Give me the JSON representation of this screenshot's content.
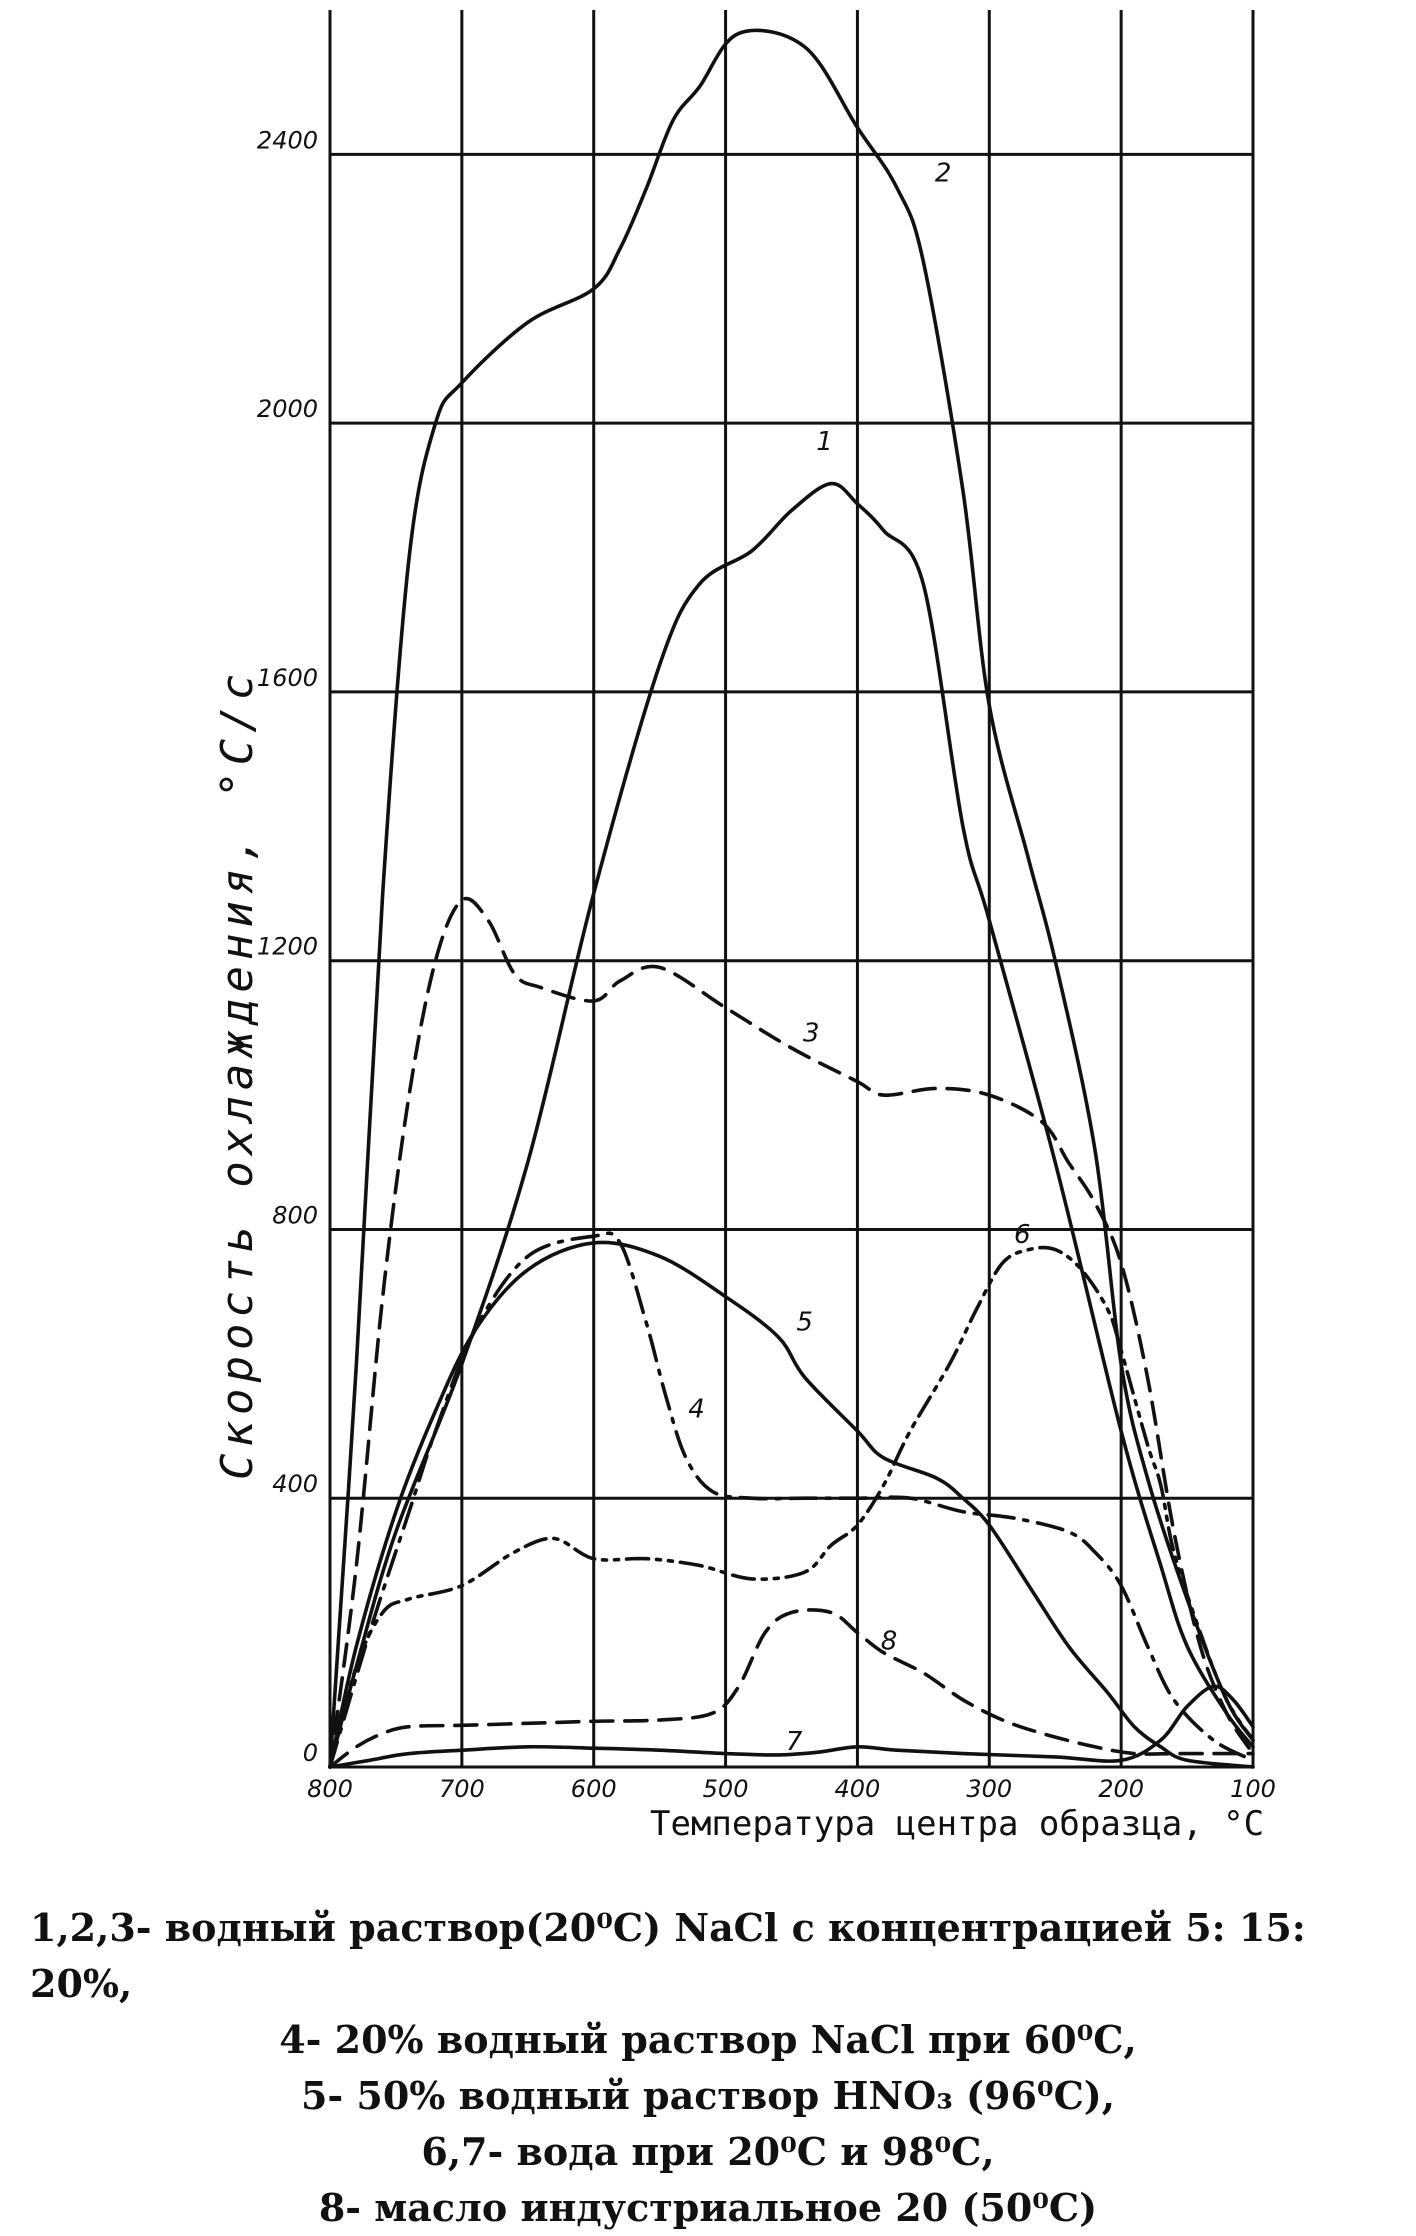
{
  "chart_data": {
    "type": "line",
    "title": "",
    "xlabel": "Температура центра образца,",
    "xunit": "°С",
    "ylabel": "Скорость охлаждения,",
    "yunit": "°С/с",
    "xlim": [
      800,
      100
    ],
    "ylim": [
      0,
      2600
    ],
    "x_ticks": [
      "800",
      "700",
      "600",
      "500",
      "400",
      "300",
      "200",
      "100"
    ],
    "y_ticks": [
      "0",
      "400",
      "800",
      "1200",
      "1600",
      "2000",
      "2400"
    ],
    "grid": true,
    "legend": "none",
    "series": [
      {
        "name": "1",
        "style": "solid",
        "points": [
          [
            800,
            0
          ],
          [
            780,
            150
          ],
          [
            750,
            350
          ],
          [
            700,
            600
          ],
          [
            650,
            900
          ],
          [
            600,
            1300
          ],
          [
            550,
            1640
          ],
          [
            520,
            1760
          ],
          [
            480,
            1810
          ],
          [
            450,
            1870
          ],
          [
            420,
            1910
          ],
          [
            400,
            1880
          ],
          [
            380,
            1840
          ],
          [
            350,
            1760
          ],
          [
            320,
            1400
          ],
          [
            300,
            1260
          ],
          [
            250,
            900
          ],
          [
            200,
            500
          ],
          [
            170,
            300
          ],
          [
            150,
            180
          ],
          [
            120,
            80
          ],
          [
            100,
            30
          ]
        ]
      },
      {
        "name": "2",
        "style": "solid",
        "points": [
          [
            800,
            0
          ],
          [
            780,
            600
          ],
          [
            760,
            1300
          ],
          [
            740,
            1800
          ],
          [
            720,
            2000
          ],
          [
            700,
            2060
          ],
          [
            650,
            2150
          ],
          [
            600,
            2200
          ],
          [
            580,
            2260
          ],
          [
            560,
            2350
          ],
          [
            540,
            2450
          ],
          [
            520,
            2500
          ],
          [
            490,
            2580
          ],
          [
            440,
            2560
          ],
          [
            400,
            2440
          ],
          [
            370,
            2350
          ],
          [
            350,
            2240
          ],
          [
            320,
            1900
          ],
          [
            300,
            1580
          ],
          [
            270,
            1350
          ],
          [
            250,
            1200
          ],
          [
            220,
            920
          ],
          [
            200,
            600
          ],
          [
            180,
            430
          ],
          [
            150,
            250
          ],
          [
            120,
            100
          ],
          [
            100,
            40
          ]
        ]
      },
      {
        "name": "3",
        "style": "dash",
        "points": [
          [
            800,
            0
          ],
          [
            780,
            300
          ],
          [
            760,
            700
          ],
          [
            740,
            1000
          ],
          [
            720,
            1200
          ],
          [
            700,
            1290
          ],
          [
            680,
            1260
          ],
          [
            660,
            1180
          ],
          [
            640,
            1160
          ],
          [
            600,
            1140
          ],
          [
            580,
            1170
          ],
          [
            550,
            1190
          ],
          [
            500,
            1130
          ],
          [
            450,
            1070
          ],
          [
            400,
            1020
          ],
          [
            380,
            1000
          ],
          [
            340,
            1010
          ],
          [
            300,
            1000
          ],
          [
            260,
            960
          ],
          [
            240,
            900
          ],
          [
            220,
            840
          ],
          [
            200,
            750
          ],
          [
            180,
            580
          ],
          [
            160,
            350
          ],
          [
            140,
            180
          ],
          [
            120,
            80
          ],
          [
            100,
            20
          ]
        ]
      },
      {
        "name": "4",
        "style": "dashdot",
        "points": [
          [
            800,
            0
          ],
          [
            770,
            200
          ],
          [
            740,
            380
          ],
          [
            720,
            500
          ],
          [
            690,
            650
          ],
          [
            650,
            760
          ],
          [
            600,
            790
          ],
          [
            580,
            780
          ],
          [
            560,
            660
          ],
          [
            545,
            550
          ],
          [
            530,
            460
          ],
          [
            510,
            410
          ],
          [
            480,
            400
          ],
          [
            440,
            400
          ],
          [
            400,
            400
          ],
          [
            360,
            400
          ],
          [
            320,
            380
          ],
          [
            280,
            370
          ],
          [
            240,
            350
          ],
          [
            220,
            320
          ],
          [
            200,
            270
          ],
          [
            180,
            180
          ],
          [
            160,
            100
          ],
          [
            130,
            40
          ],
          [
            100,
            10
          ]
        ]
      },
      {
        "name": "5",
        "style": "solid",
        "points": [
          [
            800,
            0
          ],
          [
            780,
            180
          ],
          [
            750,
            380
          ],
          [
            720,
            530
          ],
          [
            690,
            650
          ],
          [
            650,
            740
          ],
          [
            600,
            780
          ],
          [
            550,
            760
          ],
          [
            500,
            700
          ],
          [
            460,
            640
          ],
          [
            440,
            580
          ],
          [
            400,
            500
          ],
          [
            380,
            460
          ],
          [
            340,
            430
          ],
          [
            320,
            400
          ],
          [
            300,
            360
          ],
          [
            270,
            270
          ],
          [
            240,
            180
          ],
          [
            210,
            110
          ],
          [
            190,
            60
          ],
          [
            170,
            30
          ],
          [
            150,
            10
          ],
          [
            100,
            0
          ]
        ]
      },
      {
        "name": "6",
        "style": "dashdotdot",
        "points": [
          [
            800,
            0
          ],
          [
            780,
            150
          ],
          [
            760,
            230
          ],
          [
            740,
            250
          ],
          [
            700,
            270
          ],
          [
            660,
            320
          ],
          [
            630,
            340
          ],
          [
            600,
            310
          ],
          [
            560,
            310
          ],
          [
            520,
            300
          ],
          [
            480,
            280
          ],
          [
            440,
            290
          ],
          [
            420,
            330
          ],
          [
            400,
            360
          ],
          [
            380,
            420
          ],
          [
            360,
            500
          ],
          [
            330,
            600
          ],
          [
            310,
            680
          ],
          [
            290,
            750
          ],
          [
            270,
            770
          ],
          [
            250,
            770
          ],
          [
            230,
            740
          ],
          [
            210,
            680
          ],
          [
            200,
            620
          ],
          [
            180,
            480
          ],
          [
            170,
            420
          ],
          [
            160,
            320
          ],
          [
            140,
            200
          ],
          [
            120,
            100
          ],
          [
            100,
            40
          ]
        ]
      },
      {
        "name": "7",
        "style": "solid",
        "points": [
          [
            800,
            0
          ],
          [
            770,
            10
          ],
          [
            740,
            20
          ],
          [
            700,
            25
          ],
          [
            650,
            30
          ],
          [
            600,
            28
          ],
          [
            550,
            25
          ],
          [
            500,
            20
          ],
          [
            460,
            18
          ],
          [
            430,
            22
          ],
          [
            400,
            30
          ],
          [
            370,
            25
          ],
          [
            320,
            20
          ],
          [
            250,
            15
          ],
          [
            200,
            10
          ],
          [
            170,
            40
          ],
          [
            150,
            90
          ],
          [
            130,
            120
          ],
          [
            115,
            100
          ],
          [
            100,
            60
          ]
        ]
      },
      {
        "name": "8",
        "style": "dash",
        "points": [
          [
            800,
            0
          ],
          [
            780,
            30
          ],
          [
            760,
            50
          ],
          [
            740,
            60
          ],
          [
            700,
            62
          ],
          [
            650,
            65
          ],
          [
            600,
            68
          ],
          [
            550,
            70
          ],
          [
            510,
            80
          ],
          [
            490,
            120
          ],
          [
            470,
            200
          ],
          [
            450,
            230
          ],
          [
            420,
            230
          ],
          [
            400,
            200
          ],
          [
            380,
            170
          ],
          [
            350,
            140
          ],
          [
            320,
            100
          ],
          [
            290,
            70
          ],
          [
            260,
            50
          ],
          [
            220,
            30
          ],
          [
            190,
            20
          ],
          [
            160,
            20
          ],
          [
            130,
            20
          ],
          [
            100,
            20
          ]
        ]
      }
    ],
    "curve_labels": [
      {
        "name": "1",
        "x": 425,
        "y": 1960
      },
      {
        "name": "2",
        "x": 335,
        "y": 2360
      },
      {
        "name": "3",
        "x": 435,
        "y": 1080
      },
      {
        "name": "4",
        "x": 522,
        "y": 520
      },
      {
        "name": "5",
        "x": 440,
        "y": 650
      },
      {
        "name": "6",
        "x": 275,
        "y": 780
      },
      {
        "name": "7",
        "x": 448,
        "y": 25
      },
      {
        "name": "8",
        "x": 376,
        "y": 175
      }
    ]
  },
  "caption": {
    "line1": "1,2,3- водный раствор(20⁰С) NaCl с концентрацией 5: 15: 20%,",
    "line2": "4- 20% водный раствор NaCl при 60⁰С,",
    "line3": "5-  50% водный раствор HNO₃ (96⁰С),",
    "line4": "6,7- вода при 20⁰С и 98⁰С,",
    "line5": "8- масло индустриальное 20 (50⁰С)"
  }
}
